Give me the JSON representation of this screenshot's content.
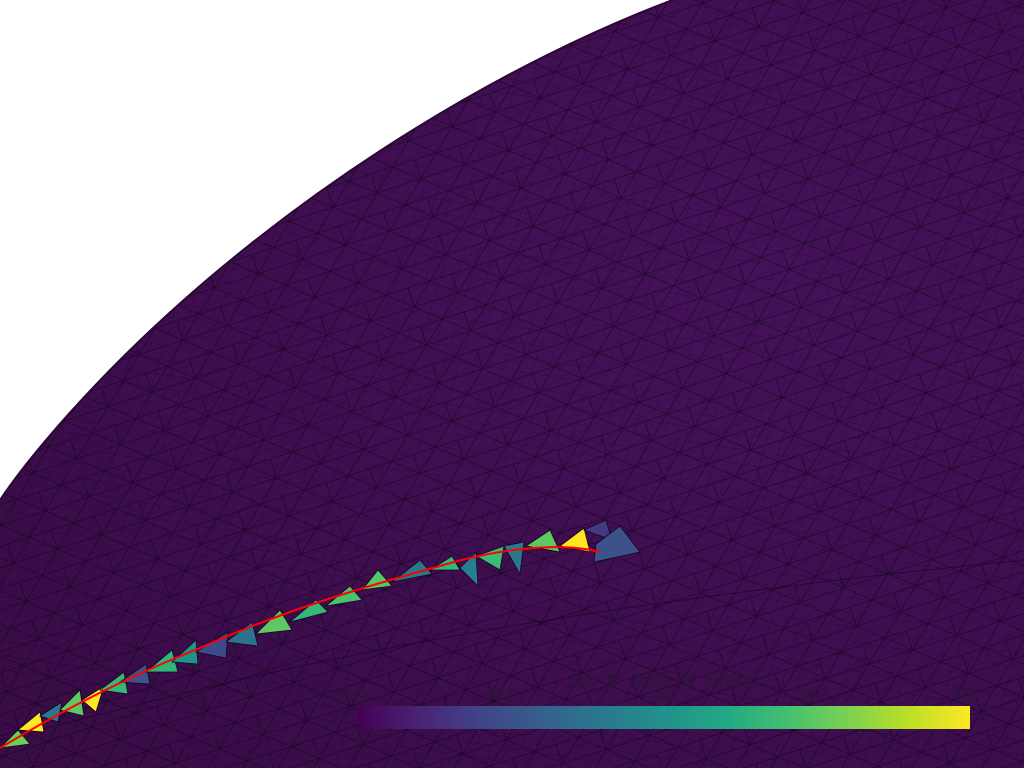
{
  "scene": {
    "background": "#ffffff",
    "surface_color": "#40104f",
    "edge_color": "#14041c",
    "curve_color": "#ff0000"
  },
  "colorbar": {
    "title": "raw_P_wave_R_lengths",
    "ticks": [
      "0.00",
      "69.0",
      "138",
      "207",
      "276"
    ],
    "colormap": "viridis"
  }
}
